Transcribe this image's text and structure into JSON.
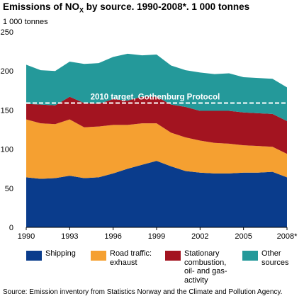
{
  "title": {
    "main": "Emissions of NO",
    "sub": "X",
    "rest": " by source. 1990-2008*. 1 000 tonnes"
  },
  "unit_label": "1 000 tonnes",
  "source": "Source: Emission inventory from Statistics Norway and the Climate and Pollution Agency.",
  "target_label": "2010 target, Gothenburg Protocol",
  "colors": {
    "Shipping": "#0a3c8c",
    "Road traffic: exhaust": "#f5a031",
    "Stationary combustion, oil- and gas-activity": "#a31420",
    "Other sources": "#24999a",
    "target_line": "#ffffff",
    "axis": "#000000"
  },
  "legend": [
    {
      "series": "Shipping",
      "text": "Shipping"
    },
    {
      "series": "Road traffic: exhaust",
      "text": "Road traffic:\nexhaust"
    },
    {
      "series": "Stationary combustion, oil- and gas-activity",
      "text": "Stationary\ncombustion,\noil- and gas-\nactivity"
    },
    {
      "series": "Other sources",
      "text": "Other\nsources"
    }
  ],
  "chart_data": {
    "type": "area",
    "stacked": true,
    "title": "Emissions of NOX by source. 1990-2008*. 1 000 tonnes",
    "ylabel": "1 000 tonnes",
    "xlabel": "",
    "x": [
      1990,
      1991,
      1992,
      1993,
      1994,
      1995,
      1996,
      1997,
      1998,
      1999,
      2000,
      2001,
      2002,
      2003,
      2004,
      2005,
      2006,
      2007,
      2008
    ],
    "x_tick_labels": [
      "1990",
      "1993",
      "1996",
      "1999",
      "2002",
      "2005",
      "2008*"
    ],
    "x_tick_values": [
      1990,
      1993,
      1996,
      1999,
      2002,
      2005,
      2008
    ],
    "ylim": [
      0,
      250
    ],
    "y_ticks": [
      0,
      50,
      100,
      150,
      200,
      250
    ],
    "grid": false,
    "target_value": 159,
    "series": [
      {
        "name": "Shipping",
        "values": [
          64,
          62,
          63,
          66,
          63,
          64,
          69,
          75,
          80,
          85,
          78,
          72,
          70,
          69,
          69,
          70,
          70,
          71,
          64
        ]
      },
      {
        "name": "Road traffic: exhaust",
        "values": [
          74,
          71,
          69,
          72,
          65,
          65,
          62,
          56,
          53,
          48,
          43,
          43,
          41,
          39,
          38,
          35,
          34,
          32,
          30
        ]
      },
      {
        "name": "Stationary combustion, oil- and gas-activity",
        "values": [
          20,
          24,
          24,
          29,
          31,
          29,
          33,
          31,
          34,
          34,
          36,
          39,
          38,
          41,
          42,
          42,
          42,
          42,
          42
        ]
      },
      {
        "name": "Other sources",
        "values": [
          50,
          44,
          44,
          45,
          50,
          52,
          54,
          60,
          53,
          54,
          50,
          47,
          49,
          47,
          48,
          45,
          45,
          45,
          43
        ]
      }
    ]
  }
}
